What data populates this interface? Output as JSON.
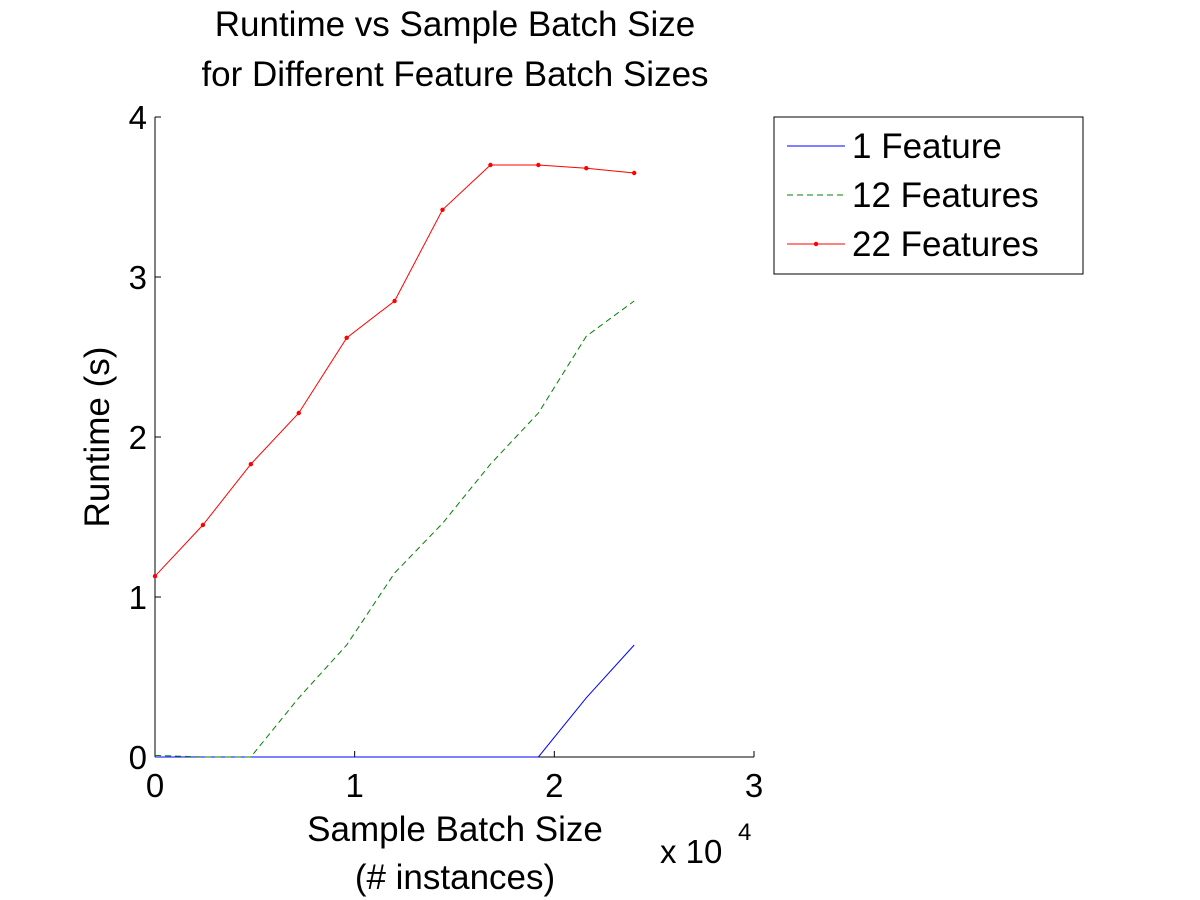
{
  "chart_data": {
    "type": "line",
    "title": [
      "Runtime vs Sample Batch Size",
      "for Different Feature Batch Sizes"
    ],
    "xlabel": [
      "Sample Batch Size",
      "(# instances)"
    ],
    "ylabel": "Runtime (s)",
    "x_multiplier_label": {
      "base": "x 10",
      "exponent": "4"
    },
    "xlim": [
      0,
      30000
    ],
    "ylim": [
      0,
      4
    ],
    "xticks": [
      0,
      10000,
      20000,
      30000
    ],
    "xtick_labels": [
      "0",
      "1",
      "2",
      "3"
    ],
    "yticks": [
      0,
      1,
      2,
      3,
      4
    ],
    "ytick_labels": [
      "0",
      "1",
      "2",
      "3",
      "4"
    ],
    "grid": false,
    "legend_position": "outside-top-right",
    "series": [
      {
        "name": "1 Feature",
        "color": "#0000ff",
        "dash": "solid",
        "marker": "none",
        "x": [
          0,
          2400,
          4800,
          7200,
          9600,
          12000,
          14400,
          16800,
          19200,
          21600,
          24000
        ],
        "y": [
          0,
          0,
          0,
          0,
          0,
          0,
          0,
          0,
          0,
          0.37,
          0.7
        ]
      },
      {
        "name": "12 Features",
        "color": "#008000",
        "dash": "dashed",
        "marker": "none",
        "x": [
          0,
          2400,
          4800,
          7200,
          9600,
          12000,
          14400,
          16800,
          19200,
          21600,
          24000
        ],
        "y": [
          0.01,
          0,
          0,
          0.37,
          0.7,
          1.15,
          1.46,
          1.83,
          2.15,
          2.63,
          2.85
        ]
      },
      {
        "name": "22 Features",
        "color": "#ff0000",
        "dash": "solid",
        "marker": "dot",
        "x": [
          0,
          2400,
          4800,
          7200,
          9600,
          12000,
          14400,
          16800,
          19200,
          21600,
          24000
        ],
        "y": [
          1.13,
          1.45,
          1.83,
          2.15,
          2.62,
          2.85,
          3.42,
          3.7,
          3.7,
          3.68,
          3.65
        ]
      }
    ]
  }
}
